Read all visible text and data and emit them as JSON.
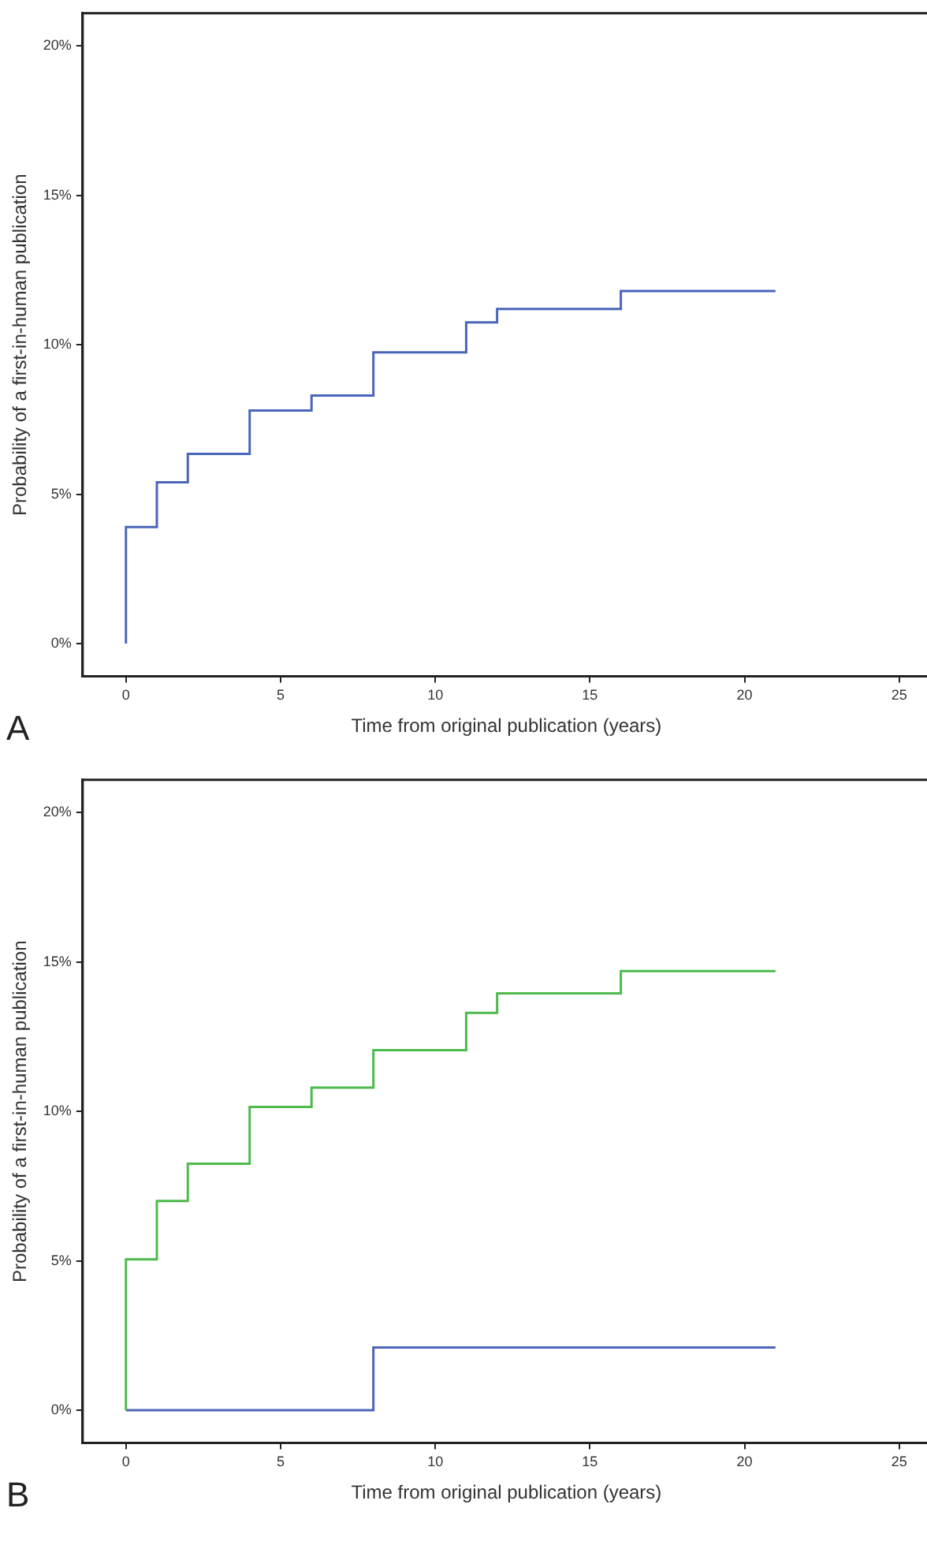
{
  "chart_data": [
    {
      "type": "step",
      "xlabel": "Time from original publication (years)",
      "ylabel": "Probability of a first-in-human publication",
      "annotations": [
        "A"
      ],
      "xlim": [
        -1.4,
        26
      ],
      "xticks": [
        0,
        5,
        10,
        15,
        20,
        25
      ],
      "ylim": [
        -1.1,
        21.1
      ],
      "yticks": [
        {
          "value": 0,
          "label": "0%"
        },
        {
          "value": 5,
          "label": "5%"
        },
        {
          "value": 10,
          "label": "10%"
        },
        {
          "value": 15,
          "label": "15%"
        },
        {
          "value": 20,
          "label": "20%"
        }
      ],
      "grid": false,
      "legend": false,
      "series": [
        {
          "color": "#4a66b8",
          "x": [
            0,
            0,
            1,
            2,
            4,
            6,
            8,
            11,
            12,
            16,
            21
          ],
          "values": [
            0,
            3.9,
            5.4,
            6.35,
            7.8,
            8.3,
            9.75,
            10.75,
            11.2,
            11.8,
            11.8
          ]
        }
      ]
    },
    {
      "type": "step",
      "xlabel": "Time from original publication (years)",
      "ylabel": "Probability of a first-in-human publication",
      "annotations": [
        "B"
      ],
      "xlim": [
        -1.4,
        26
      ],
      "xticks": [
        0,
        5,
        10,
        15,
        20,
        25
      ],
      "ylim": [
        -1.1,
        21.1
      ],
      "yticks": [
        {
          "value": 0,
          "label": "0%"
        },
        {
          "value": 5,
          "label": "5%"
        },
        {
          "value": 10,
          "label": "10%"
        },
        {
          "value": 15,
          "label": "15%"
        },
        {
          "value": 20,
          "label": "20%"
        }
      ],
      "grid": false,
      "legend": false,
      "series": [
        {
          "color": "#4cbb4c",
          "x": [
            0,
            0,
            1,
            2,
            4,
            6,
            8,
            11,
            12,
            16,
            21
          ],
          "values": [
            0,
            5.05,
            7.0,
            8.25,
            10.15,
            10.8,
            12.05,
            13.3,
            13.95,
            14.7,
            14.7
          ]
        },
        {
          "color": "#4a66b8",
          "x": [
            0,
            8,
            21
          ],
          "values": [
            0,
            2.1,
            2.1
          ]
        }
      ]
    }
  ]
}
